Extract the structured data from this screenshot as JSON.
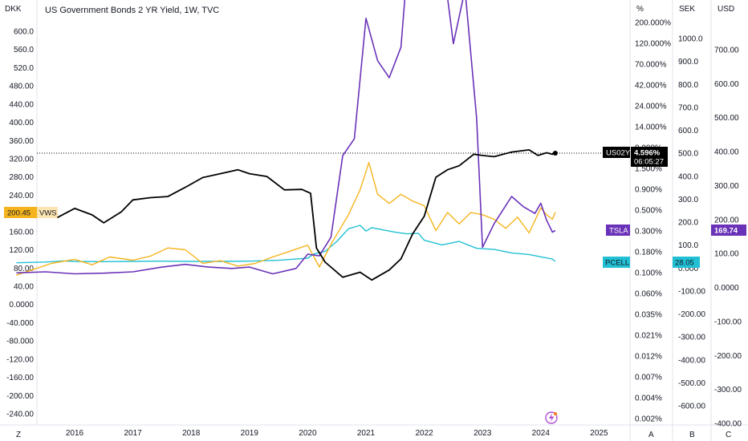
{
  "chart_data": {
    "type": "line",
    "title": "US Government Bonds 2 YR Yield, 1W, TVC",
    "x_ticks": [
      "2016",
      "2017",
      "2018",
      "2019",
      "2020",
      "2021",
      "2022",
      "2023",
      "2024",
      "2025"
    ],
    "corner_labels": {
      "left_top": "DKK",
      "pct": "%",
      "sek": "SEK",
      "usd": "USD",
      "bottom_left": "Z",
      "bottom_a": "A",
      "bottom_b": "B",
      "bottom_c": "C"
    },
    "axes": {
      "dkk": {
        "ticks": [
          "600.0",
          "560.0",
          "520.0",
          "480.00",
          "440.00",
          "400.00",
          "360.00",
          "320.00",
          "280.00",
          "240.00",
          "200.00",
          "160.00",
          "120.00",
          "80.00",
          "40.00",
          "0.0000",
          "-40.000",
          "-80.000",
          "-120.00",
          "-160.00",
          "-200.00",
          "-240.00"
        ]
      },
      "pct": {
        "ticks": [
          "200.000%",
          "120.000%",
          "70.000%",
          "42.000%",
          "24.000%",
          "14.000%",
          "8.000%",
          "1.500%",
          "0.900%",
          "0.500%",
          "0.300%",
          "0.180%",
          "0.100%",
          "0.060%",
          "0.035%",
          "0.021%",
          "0.012%",
          "0.007%",
          "0.004%",
          "0.002%"
        ]
      },
      "sek": {
        "ticks": [
          "1000.0",
          "900.0",
          "800.0",
          "700.0",
          "600.0",
          "500.0",
          "400.0",
          "300.0",
          "200.0",
          "100.0",
          "0.000",
          "-100.00",
          "-200.00",
          "-300.00",
          "-400.00",
          "-500.00",
          "-600.00"
        ]
      },
      "usd": {
        "ticks": [
          "700.00",
          "600.00",
          "500.00",
          "400.00",
          "300.00",
          "200.00",
          "100.00",
          "0.0000",
          "-100.00",
          "-200.00",
          "-300.00",
          "-400.00"
        ]
      }
    },
    "series": [
      {
        "name": "US02Y",
        "color": "#000000",
        "values": [
          [
            2015.7,
            0.72
          ],
          [
            2016.0,
            0.94
          ],
          [
            2016.3,
            0.78
          ],
          [
            2016.5,
            0.62
          ],
          [
            2016.8,
            0.85
          ],
          [
            2017.0,
            1.2
          ],
          [
            2017.3,
            1.28
          ],
          [
            2017.6,
            1.32
          ],
          [
            2017.9,
            1.72
          ],
          [
            2018.2,
            2.28
          ],
          [
            2018.5,
            2.55
          ],
          [
            2018.8,
            2.85
          ],
          [
            2019.0,
            2.55
          ],
          [
            2019.3,
            2.35
          ],
          [
            2019.6,
            1.6
          ],
          [
            2019.9,
            1.62
          ],
          [
            2020.05,
            1.45
          ],
          [
            2020.15,
            0.3
          ],
          [
            2020.3,
            0.2
          ],
          [
            2020.6,
            0.13
          ],
          [
            2020.9,
            0.15
          ],
          [
            2021.1,
            0.12
          ],
          [
            2021.4,
            0.16
          ],
          [
            2021.6,
            0.22
          ],
          [
            2021.8,
            0.45
          ],
          [
            2022.0,
            0.75
          ],
          [
            2022.2,
            2.3
          ],
          [
            2022.4,
            2.85
          ],
          [
            2022.6,
            3.2
          ],
          [
            2022.85,
            4.45
          ],
          [
            2023.0,
            4.3
          ],
          [
            2023.2,
            4.15
          ],
          [
            2023.5,
            4.75
          ],
          [
            2023.8,
            5.05
          ],
          [
            2023.95,
            4.3
          ],
          [
            2024.1,
            4.65
          ],
          [
            2024.2,
            4.45
          ],
          [
            2024.25,
            4.596
          ]
        ]
      },
      {
        "name": "VWS",
        "color": "#f5b41e",
        "values": [
          [
            2015.0,
            62
          ],
          [
            2015.3,
            75
          ],
          [
            2015.6,
            88
          ],
          [
            2016.0,
            97
          ],
          [
            2016.3,
            85
          ],
          [
            2016.6,
            102
          ],
          [
            2017.0,
            95
          ],
          [
            2017.3,
            104
          ],
          [
            2017.6,
            122
          ],
          [
            2017.9,
            118
          ],
          [
            2018.2,
            88
          ],
          [
            2018.5,
            94
          ],
          [
            2018.8,
            82
          ],
          [
            2019.1,
            88
          ],
          [
            2019.4,
            102
          ],
          [
            2019.7,
            115
          ],
          [
            2020.0,
            128
          ],
          [
            2020.2,
            80
          ],
          [
            2020.4,
            130
          ],
          [
            2020.7,
            195
          ],
          [
            2020.9,
            250
          ],
          [
            2021.05,
            310
          ],
          [
            2021.2,
            240
          ],
          [
            2021.4,
            220
          ],
          [
            2021.6,
            240
          ],
          [
            2021.8,
            225
          ],
          [
            2022.0,
            215
          ],
          [
            2022.2,
            160
          ],
          [
            2022.4,
            200
          ],
          [
            2022.6,
            175
          ],
          [
            2022.8,
            200
          ],
          [
            2023.0,
            195
          ],
          [
            2023.2,
            185
          ],
          [
            2023.4,
            165
          ],
          [
            2023.6,
            190
          ],
          [
            2023.8,
            155
          ],
          [
            2024.0,
            210
          ],
          [
            2024.1,
            195
          ],
          [
            2024.2,
            185
          ],
          [
            2024.25,
            200.45
          ]
        ]
      },
      {
        "name": "TSLA",
        "color": "#6a32b8",
        "values": [
          [
            2015.0,
            45
          ],
          [
            2015.5,
            48
          ],
          [
            2016.0,
            42
          ],
          [
            2016.5,
            44
          ],
          [
            2017.0,
            48
          ],
          [
            2017.5,
            62
          ],
          [
            2017.9,
            70
          ],
          [
            2018.3,
            62
          ],
          [
            2018.7,
            58
          ],
          [
            2019.0,
            62
          ],
          [
            2019.4,
            42
          ],
          [
            2019.8,
            58
          ],
          [
            2020.0,
            100
          ],
          [
            2020.2,
            95
          ],
          [
            2020.4,
            150
          ],
          [
            2020.6,
            390
          ],
          [
            2020.8,
            440
          ],
          [
            2021.0,
            795
          ],
          [
            2021.2,
            670
          ],
          [
            2021.4,
            620
          ],
          [
            2021.6,
            710
          ],
          [
            2021.8,
            1140
          ],
          [
            2021.95,
            1060
          ],
          [
            2022.1,
            870
          ],
          [
            2022.3,
            990
          ],
          [
            2022.5,
            720
          ],
          [
            2022.7,
            880
          ],
          [
            2022.9,
            500
          ],
          [
            2023.0,
            120
          ],
          [
            2023.2,
            190
          ],
          [
            2023.5,
            270
          ],
          [
            2023.7,
            240
          ],
          [
            2023.9,
            220
          ],
          [
            2024.0,
            250
          ],
          [
            2024.1,
            200
          ],
          [
            2024.2,
            165
          ],
          [
            2024.25,
            169.74
          ]
        ]
      },
      {
        "name": "PCELL",
        "color": "#22c0d4",
        "values": [
          [
            2015.0,
            22
          ],
          [
            2015.5,
            25
          ],
          [
            2015.8,
            30
          ],
          [
            2016.0,
            28
          ],
          [
            2016.5,
            27
          ],
          [
            2017.0,
            28
          ],
          [
            2017.5,
            29
          ],
          [
            2018.0,
            28
          ],
          [
            2018.5,
            28
          ],
          [
            2019.0,
            29
          ],
          [
            2019.5,
            33
          ],
          [
            2019.8,
            38
          ],
          [
            2020.0,
            42
          ],
          [
            2020.1,
            60
          ],
          [
            2020.3,
            72
          ],
          [
            2020.5,
            115
          ],
          [
            2020.7,
            170
          ],
          [
            2020.9,
            185
          ],
          [
            2021.0,
            160
          ],
          [
            2021.1,
            175
          ],
          [
            2021.3,
            165
          ],
          [
            2021.5,
            155
          ],
          [
            2021.7,
            148
          ],
          [
            2021.9,
            150
          ],
          [
            2022.0,
            120
          ],
          [
            2022.3,
            100
          ],
          [
            2022.6,
            115
          ],
          [
            2022.9,
            85
          ],
          [
            2023.2,
            80
          ],
          [
            2023.5,
            65
          ],
          [
            2023.8,
            58
          ],
          [
            2024.0,
            48
          ],
          [
            2024.2,
            38
          ],
          [
            2024.25,
            28.05
          ]
        ]
      }
    ],
    "last_values": {
      "US02Y": "4.596%",
      "countdown": "06:05:27",
      "VWS": "200.45",
      "TSLA": "169.74",
      "PCELL": "28.05"
    },
    "price_line_value": 4.596
  }
}
